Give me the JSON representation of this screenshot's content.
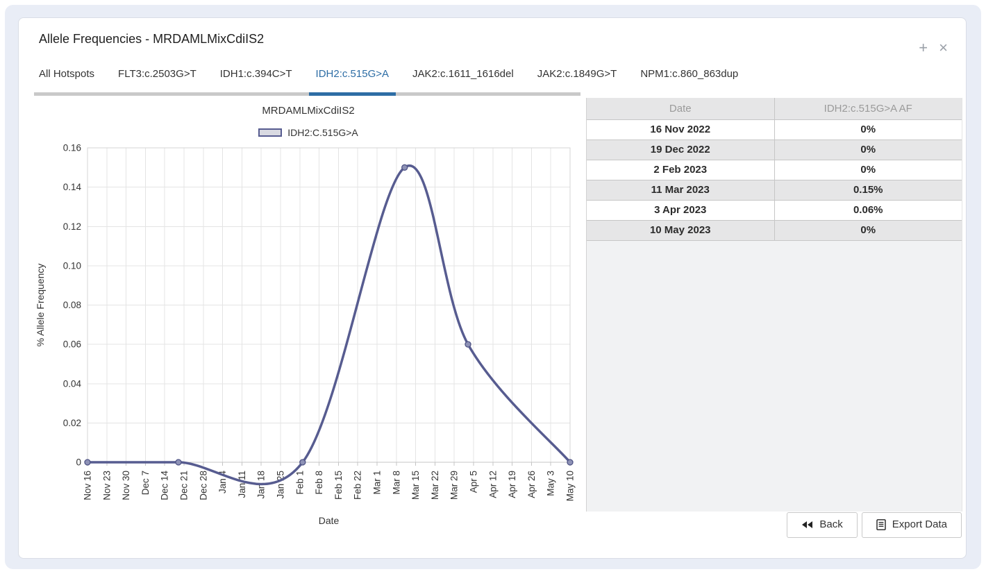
{
  "window": {
    "title": "Allele Frequencies - MRDAMLMixCdiIS2",
    "controls": {
      "add": "+",
      "close": "×"
    }
  },
  "tabs": [
    {
      "label": "All Hotspots",
      "active": false
    },
    {
      "label": "FLT3:c.2503G>T",
      "active": false
    },
    {
      "label": "IDH1:c.394C>T",
      "active": false
    },
    {
      "label": "IDH2:c.515G>A",
      "active": true
    },
    {
      "label": "JAK2:c.1611_1616del",
      "active": false
    },
    {
      "label": "JAK2:c.1849G>T",
      "active": false
    },
    {
      "label": "NPM1:c.860_863dup",
      "active": false
    }
  ],
  "chart_data": {
    "type": "line",
    "title": "MRDAMLMixCdiIS2",
    "legend": "IDH2:C.515G>A",
    "xlabel": "Date",
    "ylabel": "% Allele Frequency",
    "ylim": [
      0,
      0.16
    ],
    "ytick_step": 0.02,
    "grid": true,
    "legend_position": "top",
    "categories": [
      "Nov 16",
      "Nov 23",
      "Nov 30",
      "Dec 7",
      "Dec 14",
      "Dec 21",
      "Dec 28",
      "Jan 4",
      "Jan 11",
      "Jan 18",
      "Jan 25",
      "Feb 1",
      "Feb 8",
      "Feb 15",
      "Feb 22",
      "Mar 1",
      "Mar 8",
      "Mar 15",
      "Mar 22",
      "Mar 29",
      "Apr 5",
      "Apr 12",
      "Apr 19",
      "Apr 26",
      "May 3",
      "May 10"
    ],
    "series": [
      {
        "name": "IDH2:C.515G>A",
        "points": [
          {
            "date": "16 Nov 2022",
            "tick_pos": 0,
            "value": 0
          },
          {
            "date": "19 Dec 2022",
            "tick_pos": 4.714,
            "value": 0
          },
          {
            "date": "2 Feb 2023",
            "tick_pos": 11.143,
            "value": 0
          },
          {
            "date": "11 Mar 2023",
            "tick_pos": 16.429,
            "value": 0.15
          },
          {
            "date": "3 Apr 2023",
            "tick_pos": 19.714,
            "value": 0.06
          },
          {
            "date": "10 May 2023",
            "tick_pos": 25,
            "value": 0
          }
        ]
      }
    ],
    "colors": {
      "line": "#575c90",
      "marker_fill": "#8e92b6",
      "marker_stroke": "#4f5485",
      "grid": "#e4e4e4",
      "border": "#d4d4d4",
      "axis": "#c4c4c4",
      "text": "#333333"
    }
  },
  "table": {
    "headers": [
      "Date",
      "IDH2:c.515G>A AF"
    ],
    "rows": [
      [
        "16 Nov 2022",
        "0%"
      ],
      [
        "19 Dec 2022",
        "0%"
      ],
      [
        "2 Feb 2023",
        "0%"
      ],
      [
        "11 Mar 2023",
        "0.15%"
      ],
      [
        "3 Apr 2023",
        "0.06%"
      ],
      [
        "10 May 2023",
        "0%"
      ]
    ]
  },
  "footer": {
    "back_label": "Back",
    "export_label": "Export Data"
  },
  "colors": {
    "accent_blue": "#2d6da5",
    "tab_gray": "#c9c9c9",
    "page_bg": "#e9edf6",
    "stripe": "#e6e6e7",
    "panel_bg": "#f1f2f3"
  }
}
